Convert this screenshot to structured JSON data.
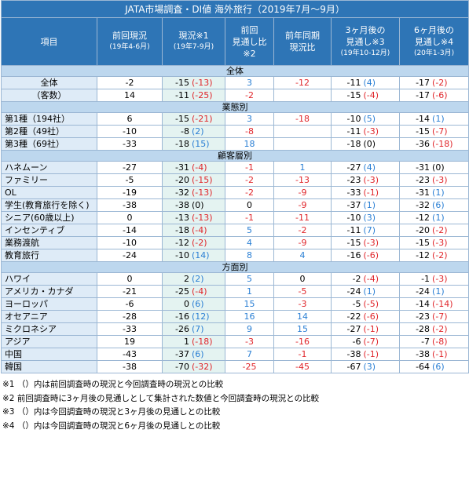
{
  "title": "JATA市場調査・DI値 海外旅行（2019年7月～9月）",
  "table": {
    "headers": [
      [
        "項目"
      ],
      [
        "前回現況",
        "(19年4-6月)"
      ],
      [
        "現況※1",
        "(19年7-9月)"
      ],
      [
        "前回",
        "見通し比",
        "※2"
      ],
      [
        "前年同期",
        "現況比"
      ],
      [
        "3ヶ月後の",
        "見通し※3",
        "(19年10-12月)"
      ],
      [
        "6ヶ月後の",
        "見通し※4",
        "(20年1-3月)"
      ]
    ],
    "sections": [
      {
        "title": "全体",
        "rows": [
          {
            "label": "全体",
            "cells": [
              "-2",
              [
                "-15",
                "(-13)"
              ],
              "3",
              "-12",
              [
                "-11",
                "(4)"
              ],
              [
                "-17",
                "(-2)"
              ]
            ]
          },
          {
            "label": "（客数）",
            "cells": [
              "14",
              [
                "-11",
                "(-25)"
              ],
              "-2",
              null,
              [
                "-15",
                "(-4)"
              ],
              [
                "-17",
                "(-6)"
              ]
            ]
          }
        ]
      },
      {
        "title": "業態別",
        "rows": [
          {
            "label": "第1種（194社）",
            "cells": [
              "6",
              [
                "-15",
                "(-21)"
              ],
              "3",
              "-18",
              [
                "-10",
                "(5)"
              ],
              [
                "-14",
                "(1)"
              ]
            ]
          },
          {
            "label": "第2種（49社）",
            "cells": [
              "-10",
              [
                "-8",
                "(2)"
              ],
              "-8",
              null,
              [
                "-11",
                "(-3)"
              ],
              [
                "-15",
                "(-7)"
              ]
            ]
          },
          {
            "label": "第3種（69社）",
            "cells": [
              "-33",
              [
                "-18",
                "(15)"
              ],
              "18",
              null,
              [
                "-18",
                "(0)"
              ],
              [
                "-36",
                "(-18)"
              ]
            ]
          }
        ]
      },
      {
        "title": "顧客層別",
        "rows": [
          {
            "label": "ハネムーン",
            "cells": [
              "-27",
              [
                "-31",
                "(-4)"
              ],
              "-1",
              "1",
              [
                "-27",
                "(4)"
              ],
              [
                "-31",
                "(0)"
              ]
            ]
          },
          {
            "label": "ファミリー",
            "cells": [
              "-5",
              [
                "-20",
                "(-15)"
              ],
              "-2",
              "-13",
              [
                "-23",
                "(-3)"
              ],
              [
                "-23",
                "(-3)"
              ]
            ]
          },
          {
            "label": "OL",
            "cells": [
              "-19",
              [
                "-32",
                "(-13)"
              ],
              "-2",
              "-9",
              [
                "-33",
                "(-1)"
              ],
              [
                "-31",
                "(1)"
              ]
            ]
          },
          {
            "label": "学生(教育旅行を除く)",
            "cells": [
              "-38",
              [
                "-38",
                "(0)"
              ],
              "0",
              "-9",
              [
                "-37",
                "(1)"
              ],
              [
                "-32",
                "(6)"
              ]
            ]
          },
          {
            "label": "シニア(60歳以上)",
            "cells": [
              "0",
              [
                "-13",
                "(-13)"
              ],
              "-1",
              "-11",
              [
                "-10",
                "(3)"
              ],
              [
                "-12",
                "(1)"
              ]
            ]
          },
          {
            "label": "インセンティブ",
            "cells": [
              "-14",
              [
                "-18",
                "(-4)"
              ],
              "5",
              "-2",
              [
                "-11",
                "(7)"
              ],
              [
                "-20",
                "(-2)"
              ]
            ]
          },
          {
            "label": "業務渡航",
            "cells": [
              "-10",
              [
                "-12",
                "(-2)"
              ],
              "4",
              "-9",
              [
                "-15",
                "(-3)"
              ],
              [
                "-15",
                "(-3)"
              ]
            ]
          },
          {
            "label": "教育旅行",
            "cells": [
              "-24",
              [
                "-10",
                "(14)"
              ],
              "8",
              "4",
              [
                "-16",
                "(-6)"
              ],
              [
                "-12",
                "(-2)"
              ]
            ]
          }
        ]
      },
      {
        "title": "方面別",
        "rows": [
          {
            "label": "ハワイ",
            "cells": [
              "0",
              [
                "2",
                "(2)"
              ],
              "5",
              "0",
              [
                "-2",
                "(-4)"
              ],
              [
                "-1",
                "(-3)"
              ]
            ]
          },
          {
            "label": "アメリカ・カナダ",
            "cells": [
              "-21",
              [
                "-25",
                "(-4)"
              ],
              "1",
              "-5",
              [
                "-24",
                "(1)"
              ],
              [
                "-24",
                "(1)"
              ]
            ]
          },
          {
            "label": "ヨーロッパ",
            "cells": [
              "-6",
              [
                "0",
                "(6)"
              ],
              "15",
              "-3",
              [
                "-5",
                "(-5)"
              ],
              [
                "-14",
                "(-14)"
              ]
            ]
          },
          {
            "label": "オセアニア",
            "cells": [
              "-28",
              [
                "-16",
                "(12)"
              ],
              "16",
              "14",
              [
                "-22",
                "(-6)"
              ],
              [
                "-23",
                "(-7)"
              ]
            ]
          },
          {
            "label": "ミクロネシア",
            "cells": [
              "-33",
              [
                "-26",
                "(7)"
              ],
              "9",
              "15",
              [
                "-27",
                "(-1)"
              ],
              [
                "-28",
                "(-2)"
              ]
            ]
          },
          {
            "label": "アジア",
            "cells": [
              "19",
              [
                "1",
                "(-18)"
              ],
              "-3",
              "-16",
              [
                "-6",
                "(-7)"
              ],
              [
                "-7",
                "(-8)"
              ]
            ]
          },
          {
            "label": "中国",
            "cells": [
              "-43",
              [
                "-37",
                "(6)"
              ],
              "7",
              "-1",
              [
                "-38",
                "(-1)"
              ],
              [
                "-38",
                "(-1)"
              ]
            ]
          },
          {
            "label": "韓国",
            "cells": [
              "-38",
              [
                "-70",
                "(-32)"
              ],
              "-25",
              "-45",
              [
                "-67",
                "(3)"
              ],
              [
                "-64",
                "(6)"
              ]
            ]
          }
        ]
      }
    ]
  },
  "notes": [
    "※1 （）内は前回調査時の現況と今回調査時の現況との比較",
    "※2 前回調査時に3ヶ月後の見通しとして集計された数値と今回調査時の現況との比較",
    "※3 （）内は今回調査時の現況と3ヶ月後の見通しとの比較",
    "※4 （）内は今回調査時の現況と6ヶ月後の見通しとの比較"
  ]
}
